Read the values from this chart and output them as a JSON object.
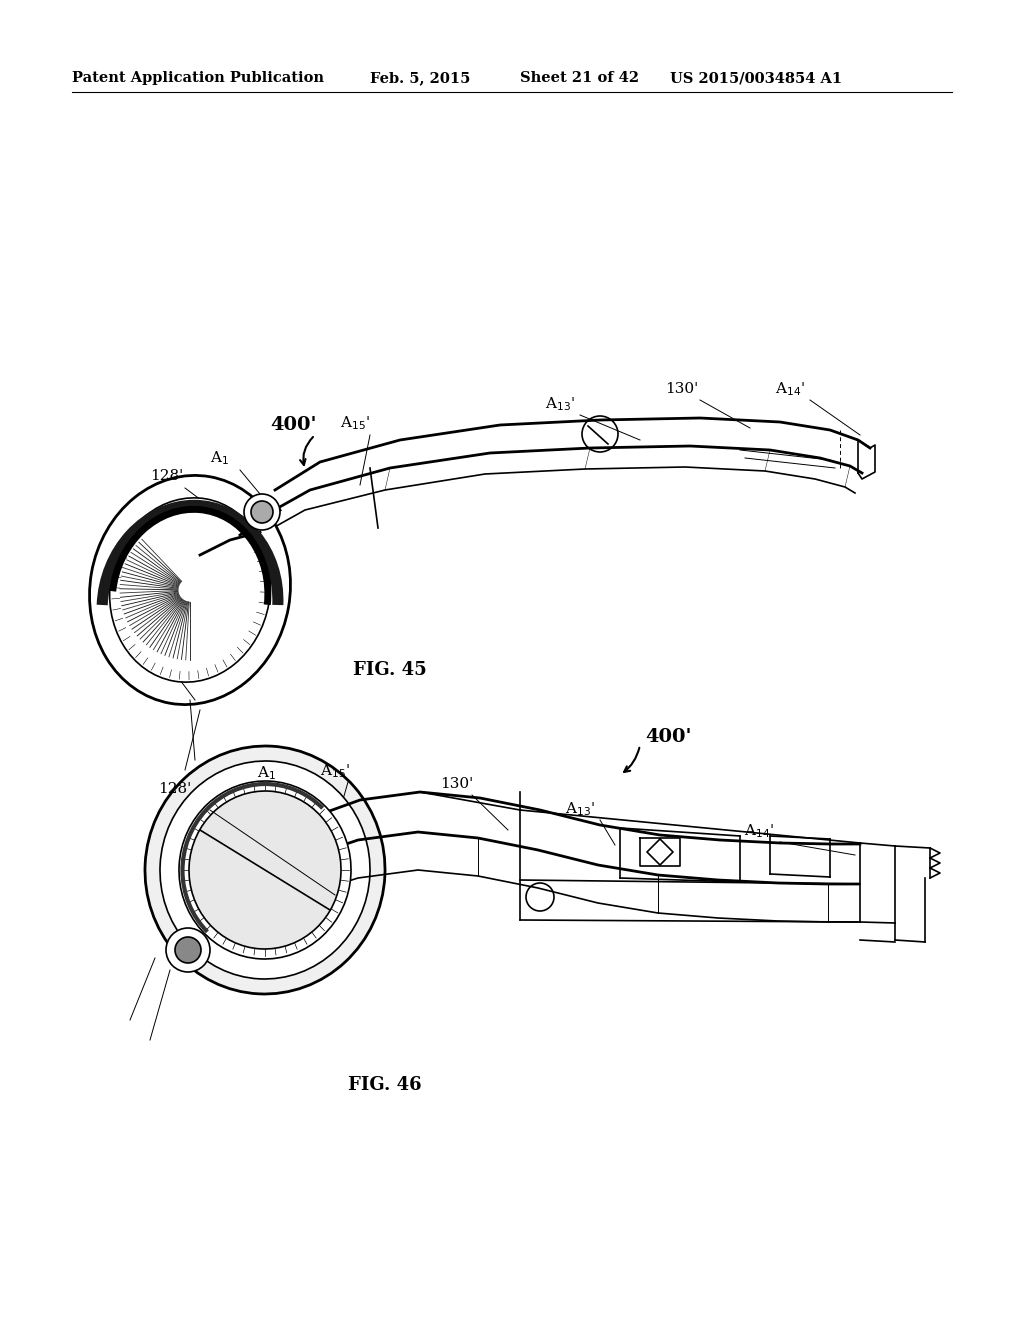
{
  "background_color": "#ffffff",
  "page_width": 10.24,
  "page_height": 13.2,
  "header_text": "Patent Application Publication",
  "header_date": "Feb. 5, 2015",
  "header_sheet": "Sheet 21 of 42",
  "header_patent": "US 2015/0034854 A1",
  "fig45_label": "FIG. 45",
  "fig46_label": "FIG. 46"
}
